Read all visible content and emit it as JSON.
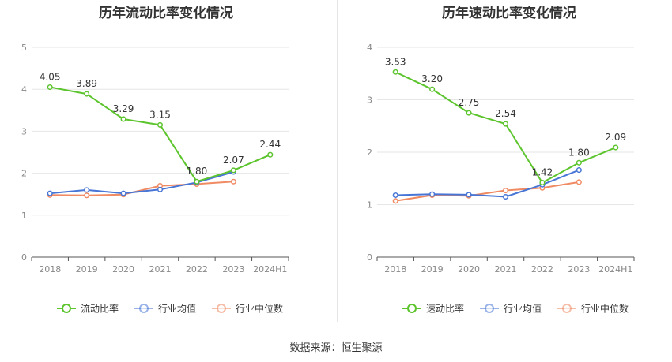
{
  "source_text": "数据来源：恒生聚源",
  "chart_data": [
    {
      "type": "line",
      "title": "历年流动比率变化情况",
      "categories": [
        "2018",
        "2019",
        "2020",
        "2021",
        "2022",
        "2023",
        "2024H1"
      ],
      "ylim": [
        0,
        5
      ],
      "yticks": [
        "0",
        "1",
        "2",
        "3",
        "4",
        "5"
      ],
      "grid": true,
      "legend_position": "bottom",
      "series": [
        {
          "name": "流动比率",
          "color": "#5cc42c",
          "labels": true,
          "values": [
            4.05,
            3.89,
            3.29,
            3.15,
            1.8,
            2.07,
            2.44
          ],
          "value_labels": [
            "4.05",
            "3.89",
            "3.29",
            "3.15",
            "1.80",
            "2.07",
            "2.44"
          ]
        },
        {
          "name": "行业均值",
          "color": "#4876d6",
          "labels": false,
          "values": [
            1.52,
            1.6,
            1.52,
            1.61,
            1.78,
            2.03,
            null
          ]
        },
        {
          "name": "行业中位数",
          "color": "#f08a62",
          "labels": false,
          "values": [
            1.48,
            1.47,
            1.49,
            1.7,
            1.74,
            1.8,
            null
          ]
        }
      ]
    },
    {
      "type": "line",
      "title": "历年速动比率变化情况",
      "categories": [
        "2018",
        "2019",
        "2020",
        "2021",
        "2022",
        "2023",
        "2024H1"
      ],
      "ylim": [
        0,
        4
      ],
      "yticks": [
        "0",
        "1",
        "2",
        "3",
        "4"
      ],
      "grid": true,
      "legend_position": "bottom",
      "series": [
        {
          "name": "速动比率",
          "color": "#5cc42c",
          "labels": true,
          "values": [
            3.53,
            3.2,
            2.75,
            2.54,
            1.42,
            1.8,
            2.09
          ],
          "value_labels": [
            "3.53",
            "3.20",
            "2.75",
            "2.54",
            "1.42",
            "1.80",
            "2.09"
          ]
        },
        {
          "name": "行业均值",
          "color": "#4876d6",
          "labels": false,
          "values": [
            1.18,
            1.2,
            1.19,
            1.15,
            1.38,
            1.66,
            null
          ]
        },
        {
          "name": "行业中位数",
          "color": "#f08a62",
          "labels": false,
          "values": [
            1.07,
            1.18,
            1.17,
            1.27,
            1.32,
            1.43,
            null
          ]
        }
      ]
    }
  ]
}
